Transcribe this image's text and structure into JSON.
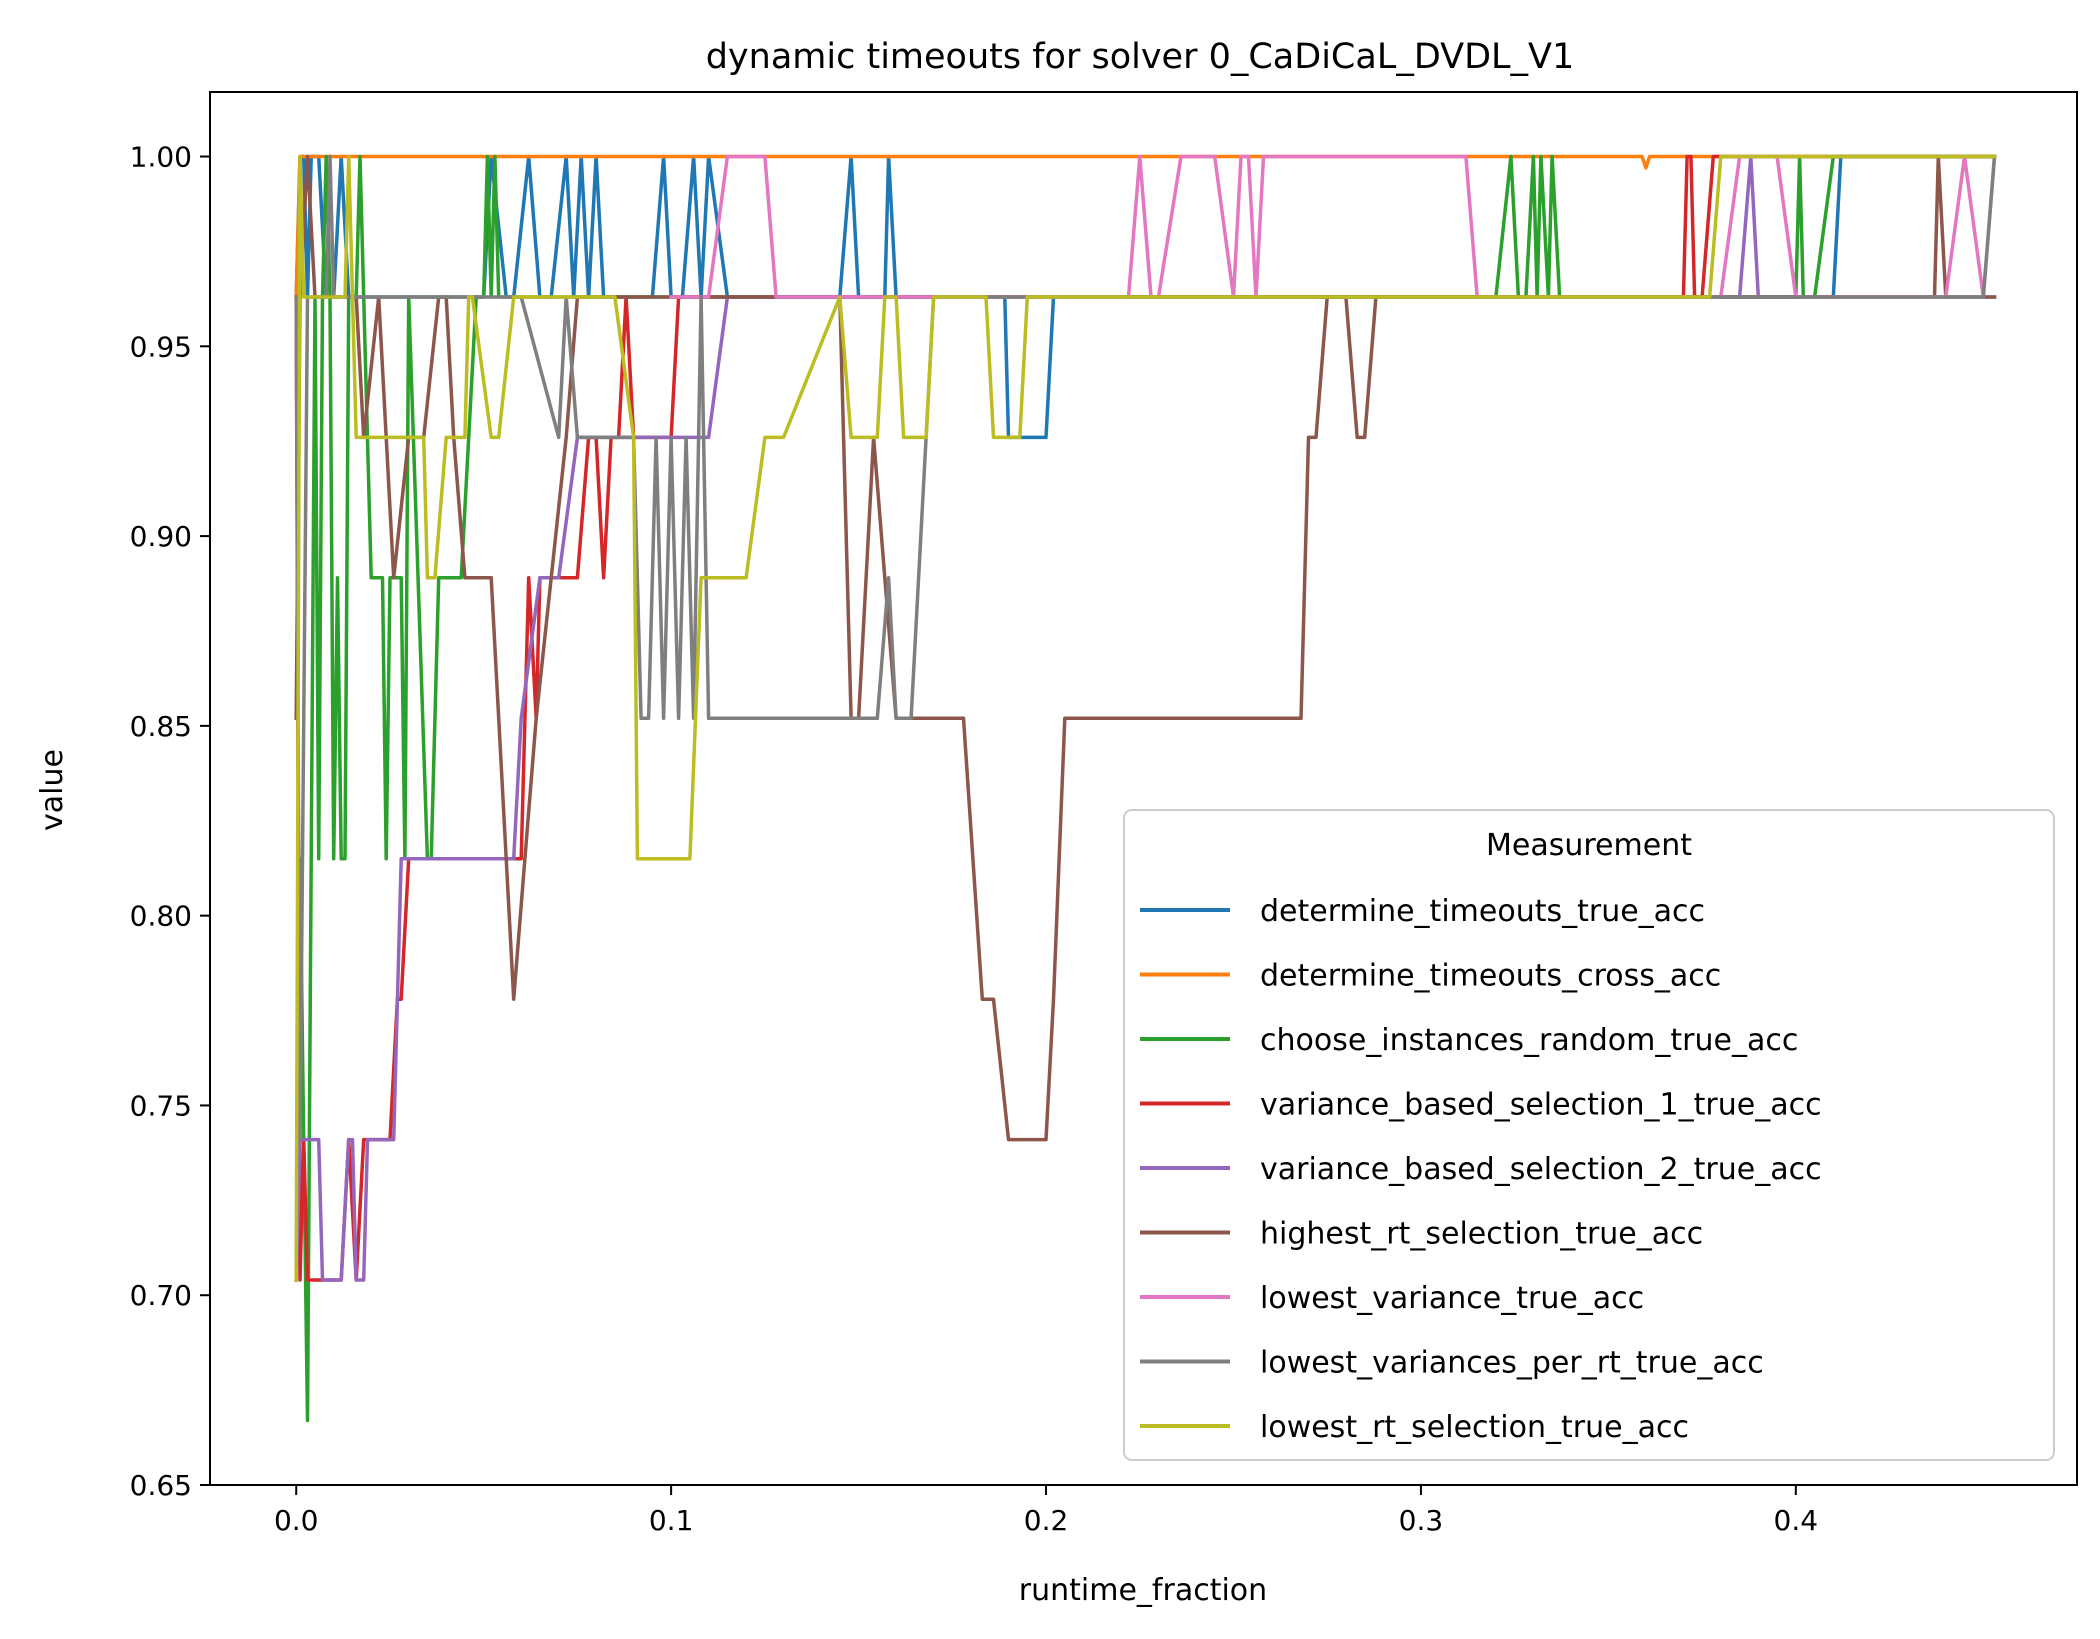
{
  "chart_data": {
    "type": "line",
    "title": "dynamic timeouts for solver 0_CaDiCaL_DVDL_V1",
    "xlabel": "runtime_fraction",
    "ylabel": "value",
    "xlim": [
      -0.023,
      0.475
    ],
    "ylim": [
      0.65,
      1.017
    ],
    "xticks": [
      0.0,
      0.1,
      0.2,
      0.3,
      0.4
    ],
    "xtick_labels": [
      "0.0",
      "0.1",
      "0.2",
      "0.3",
      "0.4"
    ],
    "yticks": [
      0.65,
      0.7,
      0.75,
      0.8,
      0.85,
      0.9,
      0.95,
      1.0
    ],
    "ytick_labels": [
      "0.65",
      "0.70",
      "0.75",
      "0.80",
      "0.85",
      "0.90",
      "0.95",
      "1.00"
    ],
    "grid": false,
    "legend": {
      "title": "Measurement",
      "position": "lower-right"
    },
    "series": [
      {
        "name": "determine_timeouts_true_acc",
        "color": "#1f77b4",
        "x": [
          0.0,
          0.001,
          0.002,
          0.003,
          0.004,
          0.006,
          0.008,
          0.01,
          0.012,
          0.014,
          0.018,
          0.03,
          0.05,
          0.052,
          0.056,
          0.058,
          0.062,
          0.065,
          0.068,
          0.072,
          0.074,
          0.076,
          0.078,
          0.08,
          0.082,
          0.084,
          0.095,
          0.098,
          0.1,
          0.103,
          0.106,
          0.108,
          0.11,
          0.115,
          0.145,
          0.148,
          0.15,
          0.157,
          0.158,
          0.16,
          0.189,
          0.19,
          0.195,
          0.198,
          0.2,
          0.202,
          0.21,
          0.41,
          0.412,
          0.414,
          0.453
        ],
        "y": [
          0.963,
          1.0,
          1.0,
          0.963,
          1.0,
          1.0,
          0.963,
          0.963,
          1.0,
          0.963,
          0.963,
          0.963,
          0.963,
          1.0,
          0.963,
          0.963,
          1.0,
          0.963,
          0.963,
          1.0,
          0.963,
          1.0,
          0.963,
          1.0,
          0.963,
          0.963,
          0.963,
          1.0,
          0.963,
          0.963,
          1.0,
          0.963,
          1.0,
          0.963,
          0.963,
          1.0,
          0.963,
          0.963,
          1.0,
          0.963,
          0.963,
          0.926,
          0.926,
          0.926,
          0.926,
          0.963,
          0.963,
          0.963,
          1.0,
          1.0,
          1.0
        ]
      },
      {
        "name": "determine_timeouts_cross_acc",
        "color": "#ff7f0e",
        "x": [
          0.0,
          0.001,
          0.1,
          0.2,
          0.3,
          0.358,
          0.359,
          0.36,
          0.361,
          0.4,
          0.453
        ],
        "y": [
          0.963,
          1.0,
          1.0,
          1.0,
          1.0,
          1.0,
          1.0,
          0.997,
          1.0,
          1.0,
          1.0
        ]
      },
      {
        "name": "choose_instances_random_true_acc",
        "color": "#2ca02c",
        "x": [
          0.0,
          0.001,
          0.002,
          0.003,
          0.004,
          0.005,
          0.006,
          0.007,
          0.008,
          0.009,
          0.01,
          0.011,
          0.012,
          0.013,
          0.014,
          0.015,
          0.016,
          0.017,
          0.018,
          0.02,
          0.021,
          0.022,
          0.023,
          0.024,
          0.025,
          0.026,
          0.028,
          0.029,
          0.03,
          0.035,
          0.036,
          0.038,
          0.04,
          0.042,
          0.043,
          0.044,
          0.046,
          0.048,
          0.05,
          0.051,
          0.052,
          0.053,
          0.054,
          0.06,
          0.32,
          0.324,
          0.326,
          0.328,
          0.33,
          0.331,
          0.332,
          0.334,
          0.335,
          0.337,
          0.4,
          0.401,
          0.402,
          0.405,
          0.41,
          0.453
        ],
        "y": [
          0.704,
          0.815,
          0.741,
          0.667,
          0.815,
          0.963,
          0.815,
          0.963,
          1.0,
          0.963,
          0.815,
          0.889,
          0.815,
          0.815,
          0.963,
          0.963,
          0.963,
          1.0,
          0.963,
          0.889,
          0.889,
          0.889,
          0.889,
          0.815,
          0.889,
          0.889,
          0.889,
          0.815,
          0.963,
          0.815,
          0.815,
          0.889,
          0.889,
          0.889,
          0.889,
          0.889,
          0.926,
          0.963,
          0.963,
          1.0,
          0.963,
          1.0,
          0.963,
          0.963,
          0.963,
          1.0,
          0.963,
          0.963,
          1.0,
          0.963,
          1.0,
          0.963,
          1.0,
          0.963,
          0.963,
          1.0,
          0.963,
          0.963,
          1.0,
          1.0
        ]
      },
      {
        "name": "variance_based_selection_1_true_acc",
        "color": "#d62728",
        "x": [
          0.0,
          0.001,
          0.002,
          0.003,
          0.004,
          0.005,
          0.012,
          0.014,
          0.016,
          0.018,
          0.02,
          0.025,
          0.027,
          0.028,
          0.03,
          0.06,
          0.062,
          0.064,
          0.065,
          0.066,
          0.075,
          0.078,
          0.08,
          0.082,
          0.084,
          0.086,
          0.088,
          0.09,
          0.095,
          0.1,
          0.102,
          0.105,
          0.11,
          0.37,
          0.371,
          0.372,
          0.373,
          0.375,
          0.378,
          0.38,
          0.453
        ],
        "y": [
          0.963,
          0.704,
          0.741,
          0.704,
          0.704,
          0.704,
          0.704,
          0.741,
          0.704,
          0.741,
          0.741,
          0.741,
          0.778,
          0.778,
          0.815,
          0.815,
          0.889,
          0.852,
          0.889,
          0.889,
          0.889,
          0.926,
          0.926,
          0.889,
          0.926,
          0.926,
          0.963,
          0.926,
          0.926,
          0.926,
          0.963,
          0.963,
          0.963,
          0.963,
          1.0,
          1.0,
          0.963,
          0.963,
          1.0,
          1.0,
          1.0
        ]
      },
      {
        "name": "variance_based_selection_2_true_acc",
        "color": "#9467bd",
        "x": [
          0.0,
          0.001,
          0.002,
          0.003,
          0.006,
          0.007,
          0.012,
          0.014,
          0.015,
          0.016,
          0.018,
          0.019,
          0.02,
          0.026,
          0.028,
          0.03,
          0.032,
          0.04,
          0.058,
          0.06,
          0.065,
          0.07,
          0.075,
          0.08,
          0.085,
          0.09,
          0.1,
          0.11,
          0.115,
          0.12,
          0.38,
          0.385,
          0.388,
          0.39,
          0.392,
          0.453
        ],
        "y": [
          0.704,
          0.741,
          0.741,
          0.741,
          0.741,
          0.704,
          0.704,
          0.741,
          0.741,
          0.704,
          0.704,
          0.741,
          0.741,
          0.741,
          0.815,
          0.815,
          0.815,
          0.815,
          0.815,
          0.852,
          0.889,
          0.889,
          0.926,
          0.926,
          0.926,
          0.926,
          0.926,
          0.926,
          0.963,
          0.963,
          0.963,
          0.963,
          1.0,
          0.963,
          0.963,
          0.963
        ]
      },
      {
        "name": "highest_rt_selection_true_acc",
        "color": "#8c564b",
        "x": [
          0.0,
          0.001,
          0.003,
          0.005,
          0.008,
          0.012,
          0.016,
          0.018,
          0.022,
          0.026,
          0.03,
          0.034,
          0.038,
          0.04,
          0.042,
          0.045,
          0.048,
          0.052,
          0.054,
          0.056,
          0.058,
          0.061,
          0.064,
          0.068,
          0.072,
          0.075,
          0.078,
          0.08,
          0.09,
          0.1,
          0.13,
          0.145,
          0.148,
          0.15,
          0.154,
          0.157,
          0.16,
          0.165,
          0.17,
          0.175,
          0.178,
          0.183,
          0.186,
          0.19,
          0.193,
          0.196,
          0.2,
          0.202,
          0.205,
          0.21,
          0.26,
          0.268,
          0.27,
          0.272,
          0.275,
          0.28,
          0.283,
          0.285,
          0.288,
          0.29,
          0.3,
          0.437,
          0.438,
          0.44,
          0.453
        ],
        "y": [
          0.852,
          0.963,
          1.0,
          0.963,
          0.963,
          0.963,
          0.963,
          0.926,
          0.963,
          0.889,
          0.926,
          0.926,
          0.963,
          0.963,
          0.926,
          0.889,
          0.889,
          0.889,
          0.852,
          0.815,
          0.778,
          0.815,
          0.852,
          0.889,
          0.926,
          0.963,
          0.963,
          0.963,
          0.963,
          0.963,
          0.963,
          0.963,
          0.852,
          0.852,
          0.926,
          0.889,
          0.852,
          0.852,
          0.852,
          0.852,
          0.852,
          0.778,
          0.778,
          0.741,
          0.741,
          0.741,
          0.741,
          0.778,
          0.852,
          0.852,
          0.852,
          0.852,
          0.926,
          0.926,
          0.963,
          0.963,
          0.926,
          0.926,
          0.963,
          0.963,
          0.963,
          0.963,
          1.0,
          0.963,
          0.963
        ]
      },
      {
        "name": "lowest_variance_true_acc",
        "color": "#e377c2",
        "x": [
          0.1,
          0.11,
          0.115,
          0.12,
          0.125,
          0.128,
          0.22,
          0.222,
          0.225,
          0.228,
          0.23,
          0.236,
          0.24,
          0.245,
          0.25,
          0.252,
          0.254,
          0.256,
          0.258,
          0.26,
          0.27,
          0.28,
          0.3,
          0.312,
          0.315,
          0.318,
          0.34,
          0.38,
          0.385,
          0.39,
          0.395,
          0.4,
          0.43,
          0.44,
          0.445,
          0.45,
          0.453
        ],
        "y": [
          0.963,
          0.963,
          1.0,
          1.0,
          1.0,
          0.963,
          0.963,
          0.963,
          1.0,
          0.963,
          0.963,
          1.0,
          1.0,
          1.0,
          0.963,
          1.0,
          1.0,
          0.963,
          1.0,
          1.0,
          1.0,
          1.0,
          1.0,
          1.0,
          0.963,
          0.963,
          0.963,
          0.963,
          1.0,
          1.0,
          1.0,
          0.963,
          0.963,
          0.963,
          1.0,
          0.963,
          1.0
        ]
      },
      {
        "name": "lowest_variances_per_rt_true_acc",
        "color": "#7f7f7f",
        "x": [
          0.0,
          0.001,
          0.003,
          0.005,
          0.008,
          0.009,
          0.01,
          0.012,
          0.02,
          0.04,
          0.06,
          0.07,
          0.072,
          0.075,
          0.08,
          0.09,
          0.092,
          0.094,
          0.096,
          0.098,
          0.1,
          0.102,
          0.104,
          0.106,
          0.108,
          0.11,
          0.112,
          0.12,
          0.15,
          0.155,
          0.158,
          0.16,
          0.162,
          0.164,
          0.168,
          0.17,
          0.172,
          0.175,
          0.18,
          0.4,
          0.45,
          0.453
        ],
        "y": [
          0.963,
          0.741,
          0.963,
          0.963,
          0.963,
          1.0,
          0.963,
          0.963,
          0.963,
          0.963,
          0.963,
          0.926,
          0.963,
          0.926,
          0.926,
          0.926,
          0.852,
          0.852,
          0.926,
          0.852,
          0.926,
          0.852,
          0.926,
          0.852,
          0.963,
          0.852,
          0.852,
          0.852,
          0.852,
          0.852,
          0.889,
          0.852,
          0.852,
          0.852,
          0.926,
          0.963,
          0.963,
          0.963,
          0.963,
          0.963,
          0.963,
          1.0
        ]
      },
      {
        "name": "lowest_rt_selection_true_acc",
        "color": "#bcbd22",
        "x": [
          0.0,
          0.001,
          0.002,
          0.003,
          0.004,
          0.01,
          0.012,
          0.013,
          0.014,
          0.015,
          0.016,
          0.03,
          0.034,
          0.035,
          0.037,
          0.04,
          0.045,
          0.046,
          0.047,
          0.052,
          0.054,
          0.058,
          0.062,
          0.065,
          0.075,
          0.085,
          0.09,
          0.091,
          0.095,
          0.105,
          0.108,
          0.11,
          0.12,
          0.125,
          0.128,
          0.13,
          0.145,
          0.148,
          0.15,
          0.155,
          0.157,
          0.16,
          0.162,
          0.165,
          0.168,
          0.17,
          0.175,
          0.18,
          0.184,
          0.186,
          0.19,
          0.193,
          0.195,
          0.2,
          0.375,
          0.377,
          0.38,
          0.453
        ],
        "y": [
          0.704,
          1.0,
          0.963,
          0.963,
          0.963,
          0.963,
          0.963,
          0.963,
          1.0,
          0.963,
          0.926,
          0.926,
          0.926,
          0.889,
          0.889,
          0.926,
          0.926,
          0.963,
          0.963,
          0.926,
          0.926,
          0.963,
          0.963,
          0.963,
          0.963,
          0.963,
          0.926,
          0.815,
          0.815,
          0.815,
          0.889,
          0.889,
          0.889,
          0.926,
          0.926,
          0.926,
          0.963,
          0.926,
          0.926,
          0.926,
          0.963,
          0.963,
          0.926,
          0.926,
          0.926,
          0.963,
          0.963,
          0.963,
          0.963,
          0.926,
          0.926,
          0.926,
          0.963,
          0.963,
          0.963,
          0.963,
          1.0,
          1.0
        ]
      }
    ]
  }
}
